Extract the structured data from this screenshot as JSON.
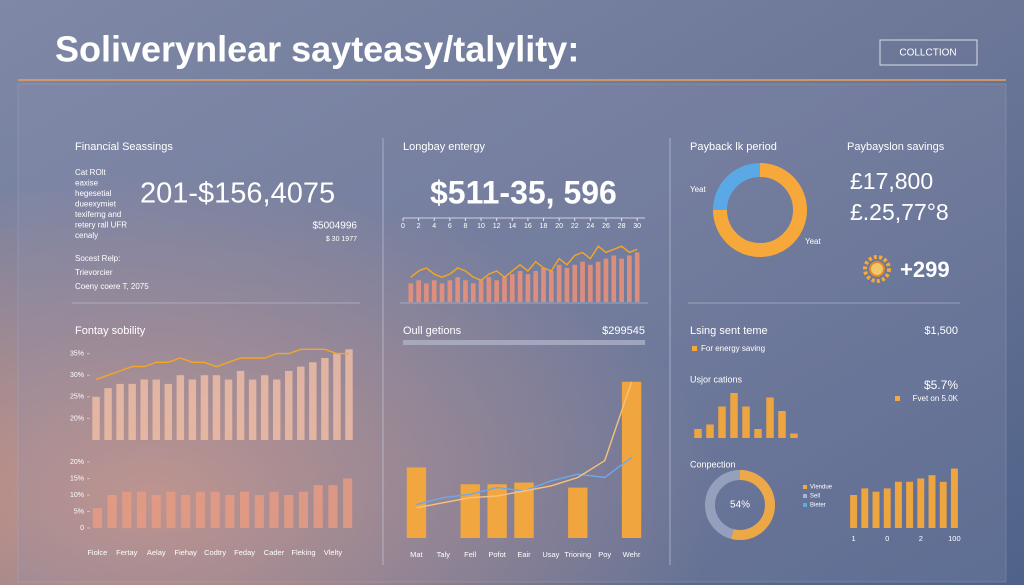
{
  "header": {
    "title": "Soliverynlear sayteasy/talylity:",
    "button": "COLLCTION"
  },
  "panels": {
    "financial": {
      "title": "Financial Seassings",
      "notes": [
        "Cat ROlt",
        "eaxise",
        "hegesetial",
        "dueexymiet",
        "texiferng and",
        "retery rall UFR",
        "cenaly"
      ],
      "kpi": "201-$156,4075",
      "sub_kpi": "$5004996",
      "sub_note": "$ 30 1977",
      "social": "Socest Relp:",
      "social_lines": [
        "Trievorcier",
        "Coeny coere T, 2075"
      ]
    },
    "energy": {
      "title": "Longbay entergy",
      "kpi": "$511-35, 596"
    },
    "savings": {
      "title": "Paybayslon savings",
      "values": [
        "£17,800",
        "£.25,77°8"
      ],
      "delta": "+299"
    },
    "lsing": {
      "title": "Lsing sent teme",
      "value": "$1,500",
      "legend": "For energy saving"
    }
  },
  "chart_data": [
    {
      "type": "bar",
      "title": "Fontay sobility",
      "values": [
        25,
        27,
        28,
        28,
        29,
        29,
        28,
        30,
        29,
        30,
        30,
        29,
        31,
        29,
        30,
        29,
        31,
        32,
        33,
        34,
        35,
        36
      ],
      "color": "#f4c0a6",
      "line": {
        "color": "#f5a623",
        "values": [
          29,
          30,
          31,
          32,
          32,
          33,
          33,
          34,
          33,
          33,
          32,
          33,
          34,
          34,
          34,
          35,
          35,
          36,
          36,
          36,
          35,
          35
        ]
      },
      "ylim": [
        15,
        37
      ],
      "yticks": [
        {
          "value": 20,
          "label": "20%"
        },
        {
          "value": 25,
          "label": "25%"
        },
        {
          "value": 30,
          "label": "30%"
        },
        {
          "value": 35,
          "label": "35%"
        }
      ]
    },
    {
      "type": "bar",
      "categories": [
        "Fiolce",
        null,
        "Fertay",
        null,
        "Aelay",
        null,
        "Fiehay",
        null,
        "Codtry",
        null,
        "Feday",
        null,
        "Cader",
        null,
        "Fleking",
        null,
        "Vlelty",
        null
      ],
      "values": [
        6,
        10,
        11,
        11,
        10,
        11,
        10,
        11,
        11,
        10,
        11,
        10,
        11,
        10,
        11,
        13,
        13,
        15
      ],
      "color": "#eb9c82",
      "ylim": [
        0,
        20
      ],
      "yticks": [
        0,
        {
          "value": 5,
          "label": "5%"
        },
        {
          "value": 10,
          "label": "10%"
        },
        {
          "value": 15,
          "label": "15%"
        },
        {
          "value": 20,
          "label": "20%"
        }
      ]
    },
    {
      "type": "bar-numeric",
      "x": [
        1,
        2,
        3,
        4,
        5,
        6,
        7,
        8,
        9,
        10,
        11,
        12,
        13,
        14,
        15,
        16,
        17,
        18,
        19,
        20,
        21,
        22,
        23,
        24,
        25,
        26,
        27,
        28,
        29,
        30
      ],
      "values": [
        3,
        3.5,
        3,
        3.5,
        3,
        3.5,
        4,
        3.5,
        3,
        3.5,
        4,
        3.5,
        4,
        4.5,
        5,
        4.5,
        5,
        5.5,
        5,
        6,
        5.5,
        6,
        6.5,
        6,
        6.5,
        7,
        7.5,
        7,
        7.5,
        8
      ],
      "color": "#e8907a",
      "line": {
        "color": "#f5a623",
        "values": [
          4,
          5,
          5.5,
          4.5,
          4,
          4.5,
          5.5,
          5,
          4,
          3.5,
          4.5,
          5,
          4,
          5,
          6,
          5,
          6.5,
          5.5,
          5,
          7,
          6,
          7.5,
          8,
          7,
          9,
          8,
          8.5,
          9,
          8,
          8.5
        ]
      },
      "xlim": [
        0,
        31
      ],
      "xticks": [
        0,
        2,
        4,
        6,
        8,
        10,
        12,
        14,
        16,
        18,
        20,
        22,
        24,
        26,
        28,
        30
      ],
      "ylim": [
        0,
        10
      ]
    },
    {
      "type": "bar",
      "title": "Oull getions",
      "annotation": "$299545",
      "categories": [
        "Mat",
        "Taly",
        "Fell",
        "Pofot",
        "Eair",
        "Usay",
        "Trioning",
        "Poy",
        "Wehr"
      ],
      "values": [
        42,
        0,
        32,
        32,
        33,
        0,
        30,
        0,
        93
      ],
      "color": "#f7a83a",
      "lines": [
        {
          "color": "#6fa8e8",
          "values": [
            20,
            24,
            26,
            30,
            28,
            34,
            38,
            36,
            48
          ]
        },
        {
          "color": "#f9c27a",
          "values": [
            18,
            21,
            24,
            25,
            28,
            31,
            36,
            46,
            93
          ]
        }
      ],
      "ylim": [
        0,
        100
      ]
    },
    {
      "type": "pie",
      "title": "Payback lk period",
      "categories": [
        "Yeat",
        "Yeat"
      ],
      "values": [
        75,
        25
      ],
      "colors": [
        "#f7a83a",
        "#5aa9e6"
      ]
    },
    {
      "type": "bar",
      "title": "Usjor cations",
      "annotation": "$5.7%",
      "note": "Fvet on 5.0K",
      "values": [
        2,
        3,
        7,
        10,
        7,
        2,
        9,
        6,
        1
      ],
      "color": "#f7a83a",
      "ylim": [
        0,
        10
      ]
    },
    {
      "type": "gauge",
      "title": "Conpection",
      "value": 54,
      "value_label": "54%",
      "ylim": [
        0,
        100
      ],
      "color": "#f7a83a",
      "legend": [
        {
          "name": "Vlendue",
          "color": "#f7a83a"
        },
        {
          "name": "Sell",
          "color": "#9fb7d9"
        },
        {
          "name": "Bieter",
          "color": "#5aa9e6"
        }
      ]
    },
    {
      "type": "bar",
      "categories": [
        "1",
        null,
        null,
        "0",
        null,
        null,
        "2",
        null,
        null,
        "100"
      ],
      "values": [
        5,
        6,
        5.5,
        6,
        7,
        7,
        7.5,
        8,
        7,
        9
      ],
      "color": "#f7a83a",
      "ylim": [
        0,
        10
      ]
    }
  ]
}
